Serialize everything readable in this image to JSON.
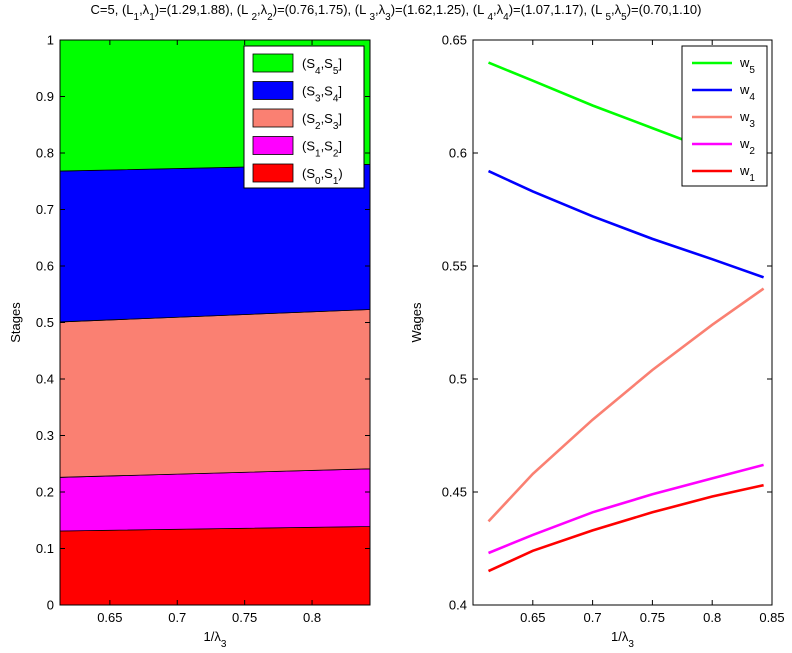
{
  "figure_title": {
    "prefix": "C=5, ",
    "pairs": [
      {
        "L": "L",
        "L_sub": "1",
        "lam_sub": "1",
        "value": "(1.29,1.88)"
      },
      {
        "L": "L ",
        "L_sub": "2",
        "lam_sub": "2",
        "value": "(0.76,1.75)"
      },
      {
        "L": "L ",
        "L_sub": "3",
        "lam_sub": "3",
        "value": "(1.62,1.25)"
      },
      {
        "L": "L ",
        "L_sub": "4",
        "lam_sub": "4",
        "value": "(1.07,1.17)"
      },
      {
        "L": "L ",
        "L_sub": "5",
        "lam_sub": "5",
        "value": "(0.70,1.10)"
      }
    ]
  },
  "chart_data": [
    {
      "type": "area",
      "xlabel": {
        "base": "1/λ",
        "sub": "3"
      },
      "ylabel": "Stages",
      "xlim": [
        0.613,
        0.843
      ],
      "ylim": [
        0,
        1
      ],
      "xticks": [
        "0.65",
        "0.7",
        "0.75",
        "0.8"
      ],
      "yticks": [
        "0",
        "0.1",
        "0.2",
        "0.3",
        "0.4",
        "0.5",
        "0.6",
        "0.7",
        "0.8",
        "0.9",
        "1"
      ],
      "legend_position": "top-right",
      "x": [
        0.613,
        0.843
      ],
      "boundaries": [
        [
          0.131,
          0.139
        ],
        [
          0.226,
          0.241
        ],
        [
          0.501,
          0.523
        ],
        [
          0.768,
          0.78
        ]
      ],
      "series": [
        {
          "name": "(S",
          "sub1": "0",
          "mid": ",S",
          "sub2": "1",
          "end": ")",
          "color": "#ff0000"
        },
        {
          "name": "(S",
          "sub1": "1",
          "mid": ",S",
          "sub2": "2",
          "end": "]",
          "color": "#ff00ff"
        },
        {
          "name": "(S",
          "sub1": "2",
          "mid": ",S",
          "sub2": "3",
          "end": "]",
          "color": "#fa8072"
        },
        {
          "name": "(S",
          "sub1": "3",
          "mid": ",S",
          "sub2": "4",
          "end": "]",
          "color": "#0000ff"
        },
        {
          "name": "(S",
          "sub1": "4",
          "mid": ",S",
          "sub2": "5",
          "end": "]",
          "color": "#00ff00"
        }
      ]
    },
    {
      "type": "line",
      "xlabel": {
        "base": "1/λ",
        "sub": "3"
      },
      "ylabel": "Wages",
      "xlim": [
        0.6,
        0.85
      ],
      "ylim": [
        0.4,
        0.65
      ],
      "xticks": [
        "0.65",
        "0.7",
        "0.75",
        "0.8",
        "0.85"
      ],
      "yticks": [
        "0.4",
        "0.45",
        "0.5",
        "0.55",
        "0.6",
        "0.65"
      ],
      "legend_position": "top-right",
      "x": [
        0.613,
        0.65,
        0.7,
        0.75,
        0.8,
        0.843
      ],
      "series": [
        {
          "name": "w",
          "sub": "5",
          "color": "#00ff00",
          "values": [
            0.64,
            0.632,
            0.621,
            0.611,
            0.601,
            0.593
          ]
        },
        {
          "name": "w",
          "sub": "4",
          "color": "#0000ff",
          "values": [
            0.592,
            0.583,
            0.572,
            0.562,
            0.553,
            0.545
          ]
        },
        {
          "name": "w",
          "sub": "3",
          "color": "#fa8072",
          "values": [
            0.437,
            0.458,
            0.482,
            0.504,
            0.524,
            0.54
          ]
        },
        {
          "name": "w",
          "sub": "2",
          "color": "#ff00ff",
          "values": [
            0.423,
            0.431,
            0.441,
            0.449,
            0.456,
            0.462
          ]
        },
        {
          "name": "w",
          "sub": "1",
          "color": "#ff0000",
          "values": [
            0.415,
            0.424,
            0.433,
            0.441,
            0.448,
            0.453
          ]
        }
      ]
    }
  ]
}
